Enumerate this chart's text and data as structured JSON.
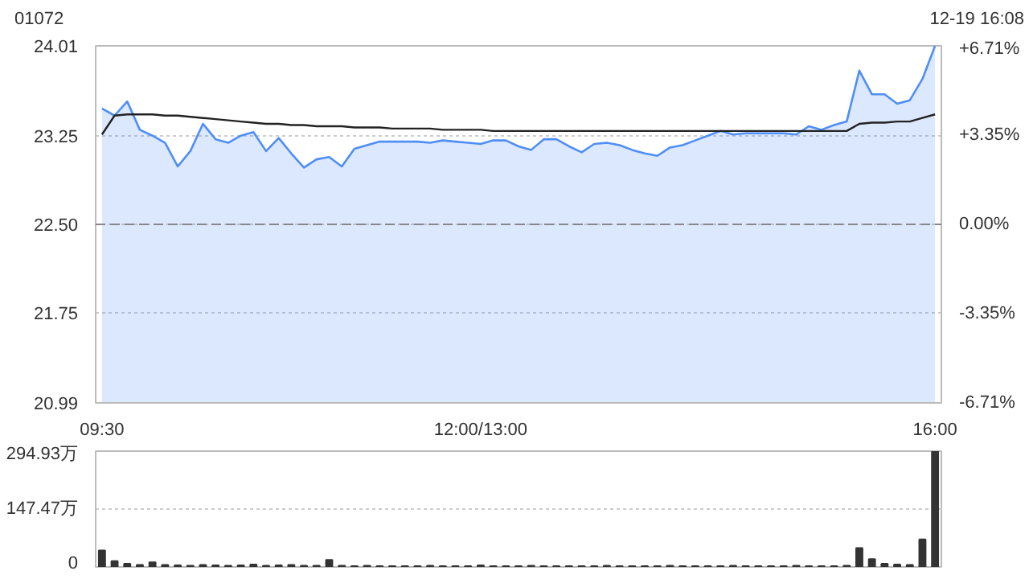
{
  "chart_data": [
    {
      "type": "line",
      "title": "01072",
      "annotations": [
        "12-19 16:08"
      ],
      "categories": [
        "09:30",
        null,
        null,
        null,
        null,
        null,
        null,
        null,
        null,
        null,
        null,
        null,
        null,
        null,
        null,
        null,
        null,
        null,
        null,
        null,
        null,
        null,
        null,
        null,
        null,
        null,
        null,
        null,
        null,
        null,
        "12:00/13:00",
        null,
        null,
        null,
        null,
        null,
        null,
        null,
        null,
        null,
        null,
        null,
        null,
        null,
        null,
        null,
        null,
        null,
        null,
        null,
        null,
        null,
        null,
        null,
        null,
        null,
        null,
        null,
        null,
        null,
        null,
        null,
        null,
        null,
        null,
        null,
        "16:00"
      ],
      "series": [
        {
          "type": "area",
          "color": "#4f8ef7",
          "values": [
            23.48,
            23.42,
            23.54,
            23.3,
            23.25,
            23.19,
            22.99,
            23.12,
            23.35,
            23.22,
            23.19,
            23.25,
            23.28,
            23.12,
            23.23,
            23.1,
            22.98,
            23.05,
            23.07,
            22.99,
            23.14,
            23.17,
            23.2,
            23.2,
            23.2,
            23.2,
            23.19,
            23.21,
            23.2,
            23.19,
            23.18,
            23.21,
            23.21,
            23.16,
            23.13,
            23.22,
            23.22,
            23.16,
            23.11,
            23.18,
            23.19,
            23.17,
            23.13,
            23.1,
            23.08,
            23.15,
            23.17,
            23.21,
            23.25,
            23.29,
            23.26,
            23.27,
            23.27,
            23.27,
            23.27,
            23.26,
            23.33,
            23.3,
            23.34,
            23.37,
            23.8,
            23.6,
            23.6,
            23.52,
            23.55,
            23.73,
            24.01
          ]
        },
        {
          "type": "line",
          "color": "#222222",
          "values": [
            23.26,
            23.42,
            23.43,
            23.43,
            23.43,
            23.42,
            23.42,
            23.41,
            23.4,
            23.39,
            23.38,
            23.37,
            23.36,
            23.35,
            23.35,
            23.34,
            23.34,
            23.33,
            23.33,
            23.33,
            23.32,
            23.32,
            23.32,
            23.31,
            23.31,
            23.31,
            23.31,
            23.3,
            23.3,
            23.3,
            23.3,
            23.29,
            23.29,
            23.29,
            23.29,
            23.29,
            23.29,
            23.29,
            23.29,
            23.29,
            23.29,
            23.29,
            23.29,
            23.29,
            23.29,
            23.29,
            23.29,
            23.29,
            23.29,
            23.29,
            23.29,
            23.29,
            23.29,
            23.29,
            23.29,
            23.29,
            23.29,
            23.29,
            23.29,
            23.29,
            23.35,
            23.36,
            23.36,
            23.37,
            23.37,
            23.4,
            23.43
          ]
        }
      ],
      "ylim": [
        20.99,
        24.01
      ],
      "yticks": [
        20.99,
        21.75,
        {
          "value": 22.5,
          "label": "22.50"
        },
        23.25,
        24.01
      ],
      "y2lim": [
        -6.71,
        6.71
      ],
      "y2ticks": [
        {
          "value": -6.71,
          "label": "-6.71%"
        },
        {
          "value": -3.35,
          "label": "-3.35%"
        },
        {
          "value": 0,
          "label": "0.00%"
        },
        {
          "value": 3.35,
          "label": "+3.35%"
        },
        {
          "value": 6.71,
          "label": "+6.71%"
        }
      ],
      "ref_lines": [
        {
          "axis": "y",
          "value": 22.5,
          "label": null,
          "color": "#888888",
          "line_style": "dashed"
        }
      ],
      "grid": "y"
    },
    {
      "type": "bar",
      "color": "#333333",
      "tick_labels": "y",
      "categories": [
        null,
        null,
        null,
        null,
        null,
        null,
        null,
        null,
        null,
        null,
        null,
        null,
        null,
        null,
        null,
        null,
        null,
        null,
        null,
        null,
        null,
        null,
        null,
        null,
        null,
        null,
        null,
        null,
        null,
        null,
        null,
        null,
        null,
        null,
        null,
        null,
        null,
        null,
        null,
        null,
        null,
        null,
        null,
        null,
        null,
        null,
        null,
        null,
        null,
        null,
        null,
        null,
        null,
        null,
        null,
        null,
        null,
        null,
        null,
        null,
        null,
        null,
        null,
        null,
        null,
        null,
        null
      ],
      "values": [
        42,
        15,
        8,
        5,
        12,
        5,
        4,
        3,
        5,
        4,
        3,
        4,
        6,
        3,
        4,
        5,
        3,
        3,
        18,
        3,
        2,
        3,
        2,
        2,
        2,
        2,
        3,
        2,
        2,
        2,
        4,
        2,
        2,
        2,
        3,
        2,
        2,
        2,
        2,
        2,
        3,
        2,
        2,
        2,
        2,
        3,
        2,
        2,
        2,
        2,
        3,
        2,
        2,
        2,
        2,
        3,
        2,
        2,
        2,
        3,
        48,
        20,
        8,
        6,
        5,
        70,
        294
      ],
      "ylim": [
        0,
        294.93
      ],
      "yticks": [
        0,
        {
          "value": 147.47,
          "label": "147.47万"
        },
        {
          "value": 294.93,
          "label": "294.93万"
        }
      ],
      "grid": "y"
    }
  ]
}
